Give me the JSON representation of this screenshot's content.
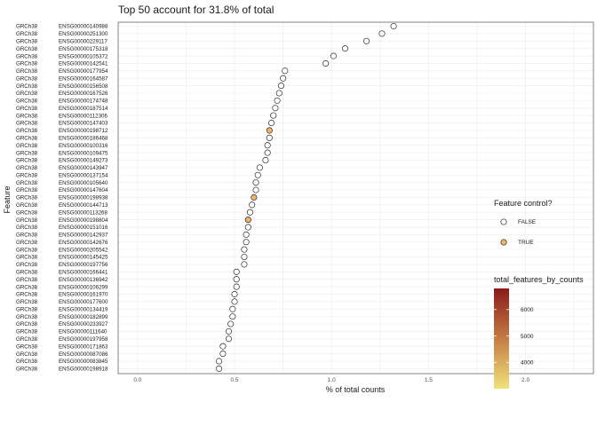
{
  "chart_data": {
    "type": "scatter",
    "title": "Top 50 account for 31.8% of total",
    "xlabel": "% of total counts",
    "ylabel": "Feature",
    "xlim": [
      -0.1,
      2.35
    ],
    "xticks": [
      "0.0",
      "0.5",
      "1.0",
      "1.5",
      "2.0"
    ],
    "xtick_values": [
      0.0,
      0.5,
      1.0,
      1.5,
      2.0
    ],
    "grid": true,
    "prefix": "GRCh38",
    "features": [
      "ENSG00000140988",
      "ENSG00000251300",
      "ENSG00000229117",
      "ENSG00000175318",
      "ENSG00000105372",
      "ENSG00000142541",
      "ENSG00000177954",
      "ENSG00000164587",
      "ENSG00000156508",
      "ENSG00000167526",
      "ENSG00000174748",
      "ENSG00000187514",
      "ENSG00000112306",
      "ENSG00000147403",
      "ENSG00000198712",
      "ENSG00000186468",
      "ENSG00000100316",
      "ENSG00000109475",
      "ENSG00000149273",
      "ENSG00000143947",
      "ENSG00000137154",
      "ENSG00000105640",
      "ENSG00000147604",
      "ENSG00000198938",
      "ENSG00000144713",
      "ENSG00000113268",
      "ENSG00000198804",
      "ENSG00000151016",
      "ENSG00000142937",
      "ENSG00000142676",
      "ENSG00000205542",
      "ENSG00000145425",
      "ENSG00000197756",
      "ENSG00000166441",
      "ENSG00000136942",
      "ENSG00000106299",
      "ENSG00000161970",
      "ENSG00000177600",
      "ENSG00000134419",
      "ENSG00000182899",
      "ENSG00000233927",
      "ENSG00000111640",
      "ENSG00000197958",
      "ENSG00000171863",
      "ENSG00000087086",
      "ENSG00000083845",
      "ENSG00000198918",
      "ENSG00000198755",
      "ENSG00000089157",
      "ENSG00000198242"
    ],
    "values": [
      1.32,
      1.26,
      1.18,
      1.07,
      1.01,
      0.97,
      0.76,
      0.75,
      0.74,
      0.73,
      0.72,
      0.71,
      0.7,
      0.69,
      0.68,
      0.68,
      0.67,
      0.67,
      0.66,
      0.63,
      0.62,
      0.61,
      0.61,
      0.6,
      0.59,
      0.58,
      0.57,
      0.57,
      0.56,
      0.56,
      0.55,
      0.55,
      0.55,
      0.51,
      0.51,
      0.51,
      0.5,
      0.5,
      0.49,
      0.49,
      0.48,
      0.47,
      0.47,
      0.44,
      0.44,
      0.42,
      0.42,
      0.41,
      0.41,
      0.4
    ],
    "feature_control": [
      false,
      false,
      false,
      false,
      false,
      false,
      false,
      false,
      false,
      false,
      false,
      false,
      false,
      false,
      true,
      false,
      false,
      false,
      false,
      false,
      false,
      false,
      false,
      true,
      false,
      false,
      true,
      false,
      false,
      false,
      false,
      false,
      false,
      false,
      false,
      false,
      false,
      false,
      false,
      false,
      false,
      false,
      false,
      false,
      false,
      false,
      false,
      false,
      false,
      false
    ],
    "legend": {
      "shape_title": "Feature control?",
      "shape_entries": [
        "FALSE",
        "TRUE"
      ],
      "color_title": "total_features_by_counts",
      "color_ticks": [
        "6000",
        "5000",
        "4000"
      ],
      "color_tick_values": [
        6000,
        5000,
        4000
      ],
      "color_range": [
        3000,
        6800
      ],
      "color_low": "#f0e27b",
      "color_high": "#8b1a1a"
    },
    "colors": {
      "point_fill": "#ffffff",
      "point_stroke": "#2b2b2b",
      "control_fill": "#f0b36b",
      "grid": "#ebebeb",
      "panel_border": "#333333"
    }
  }
}
